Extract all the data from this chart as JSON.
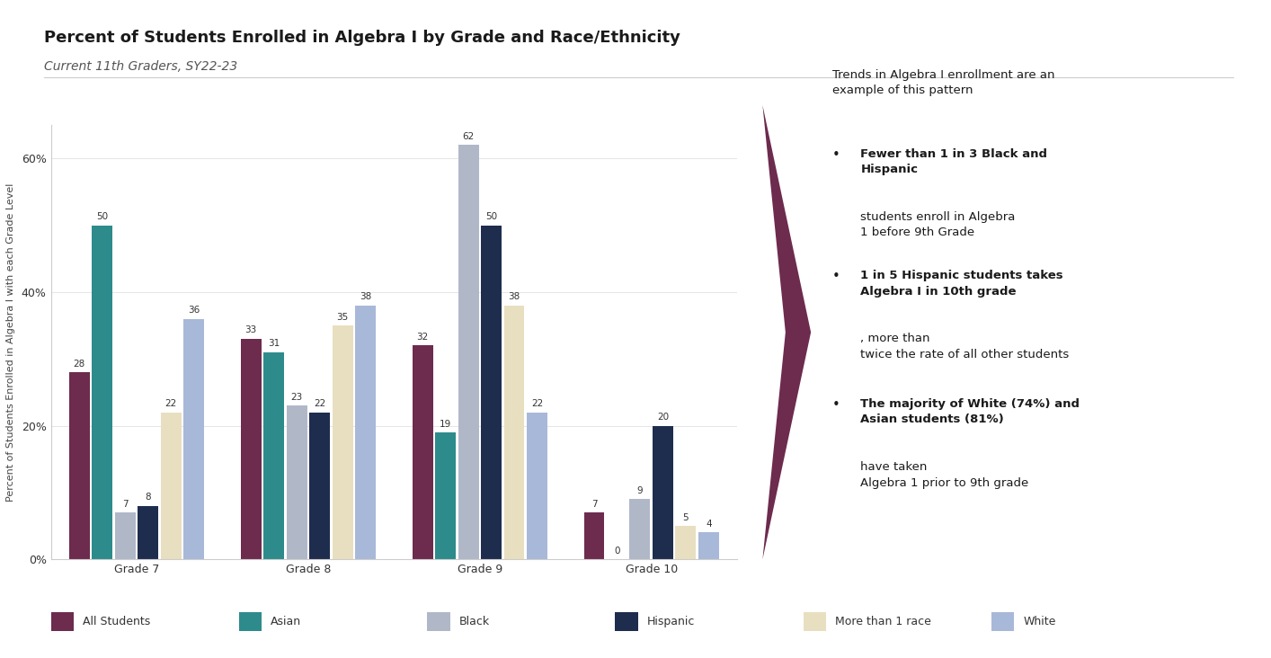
{
  "title": "Percent of Students Enrolled in Algebra I by Grade and Race/Ethnicity",
  "subtitle": "Current 11th Graders, SY22-23",
  "ylabel": "Percent of Students Enrolled in Algebra I with each Grade Level",
  "grades": [
    "Grade 7",
    "Grade 8",
    "Grade 9",
    "Grade 10"
  ],
  "categories": [
    "All Students",
    "Asian",
    "Black",
    "Hispanic",
    "More than 1 race",
    "White"
  ],
  "colors": [
    "#6d2b4e",
    "#2e8b8b",
    "#b0b8c8",
    "#1e2d4e",
    "#e8dfc0",
    "#a8b8d8"
  ],
  "data": {
    "Grade 7": [
      28,
      50,
      7,
      8,
      22,
      36
    ],
    "Grade 8": [
      33,
      31,
      23,
      22,
      35,
      38
    ],
    "Grade 9": [
      32,
      19,
      62,
      50,
      38,
      22
    ],
    "Grade 10": [
      7,
      0,
      9,
      20,
      5,
      4
    ]
  },
  "ylim": [
    0,
    65
  ],
  "yticks": [
    0,
    20,
    40,
    60
  ],
  "ytick_labels": [
    "0%",
    "20%",
    "40%",
    "60%"
  ],
  "background_color": "#ffffff",
  "arrow_color": "#6d2b4e"
}
